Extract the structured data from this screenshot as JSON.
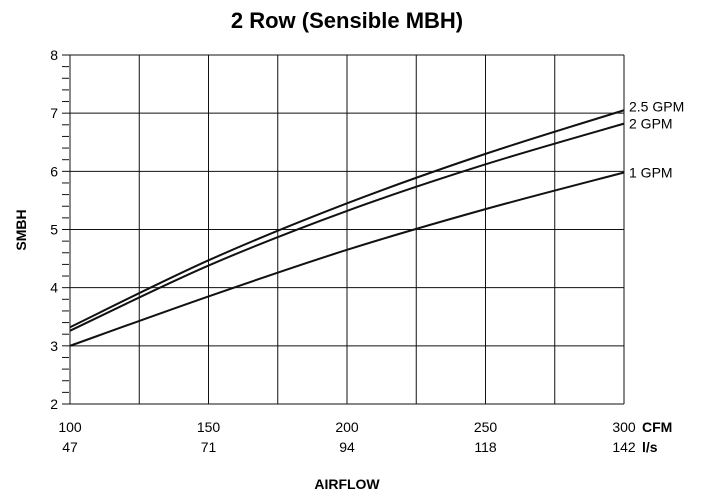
{
  "chart_data": {
    "type": "line",
    "title": "2 Row (Sensible MBH)",
    "xlabel": "AIRFLOW",
    "ylabel": "SMBH",
    "xlim": [
      100,
      300
    ],
    "ylim": [
      2,
      8
    ],
    "x_ticks_cfm": [
      "100",
      "150",
      "200",
      "250",
      "300"
    ],
    "x_ticks_ls": [
      "47",
      "71",
      "94",
      "118",
      "142"
    ],
    "x_unit_primary": "CFM",
    "x_unit_secondary": "l/s",
    "y_ticks": [
      "2",
      "3",
      "4",
      "5",
      "6",
      "7",
      "8"
    ],
    "grid": true,
    "series": [
      {
        "name": "2.5 GPM",
        "x": [
          100,
          150,
          200,
          250,
          300
        ],
        "values": [
          3.32,
          4.47,
          5.45,
          6.3,
          7.05
        ]
      },
      {
        "name": "2 GPM",
        "x": [
          100,
          150,
          200,
          250,
          300
        ],
        "values": [
          3.26,
          4.38,
          5.32,
          6.12,
          6.82
        ]
      },
      {
        "name": "1 GPM",
        "x": [
          100,
          150,
          200,
          250,
          300
        ],
        "values": [
          3.0,
          3.85,
          4.65,
          5.35,
          5.98
        ]
      }
    ]
  }
}
